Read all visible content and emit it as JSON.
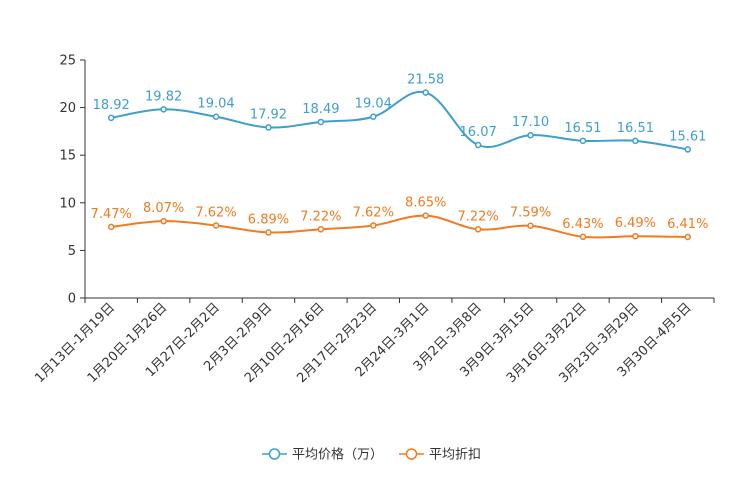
{
  "chart_data": {
    "type": "line",
    "title": "",
    "xlabel": "",
    "ylabel": "",
    "ylim": [
      0,
      25
    ],
    "yticks": [
      0,
      5,
      10,
      15,
      20,
      25
    ],
    "grid": false,
    "legend_position": "bottom-center",
    "categories": [
      "1月13日-1月19日",
      "1月20日-1月26日",
      "1月27日-2月2日",
      "2月3日-2月9日",
      "2月10日-2月16日",
      "2月17日-2月23日",
      "2月24日-3月1日",
      "3月2日-3月8日",
      "3月9日-3月15日",
      "3月16日-3月22日",
      "3月23日-3月29日",
      "3月30日-4月5日"
    ],
    "series": [
      {
        "name": "平均价格（万）",
        "color": "#3c9fce",
        "values": [
          18.92,
          19.82,
          19.04,
          17.92,
          18.49,
          19.04,
          21.58,
          16.07,
          17.1,
          16.51,
          16.51,
          15.61
        ],
        "labels": [
          "18.92",
          "19.82",
          "19.04",
          "17.92",
          "18.49",
          "19.04",
          "21.58",
          "16.07",
          "17.10",
          "16.51",
          "16.51",
          "15.61"
        ]
      },
      {
        "name": "平均折扣",
        "color": "#f27b1f",
        "values": [
          7.47,
          8.07,
          7.62,
          6.89,
          7.22,
          7.62,
          8.65,
          7.22,
          7.59,
          6.43,
          6.49,
          6.41
        ],
        "labels": [
          "7.47%",
          "8.07%",
          "7.62%",
          "6.89%",
          "7.22%",
          "7.62%",
          "8.65%",
          "7.22%",
          "7.59%",
          "6.43%",
          "6.49%",
          "6.41%"
        ]
      }
    ]
  }
}
